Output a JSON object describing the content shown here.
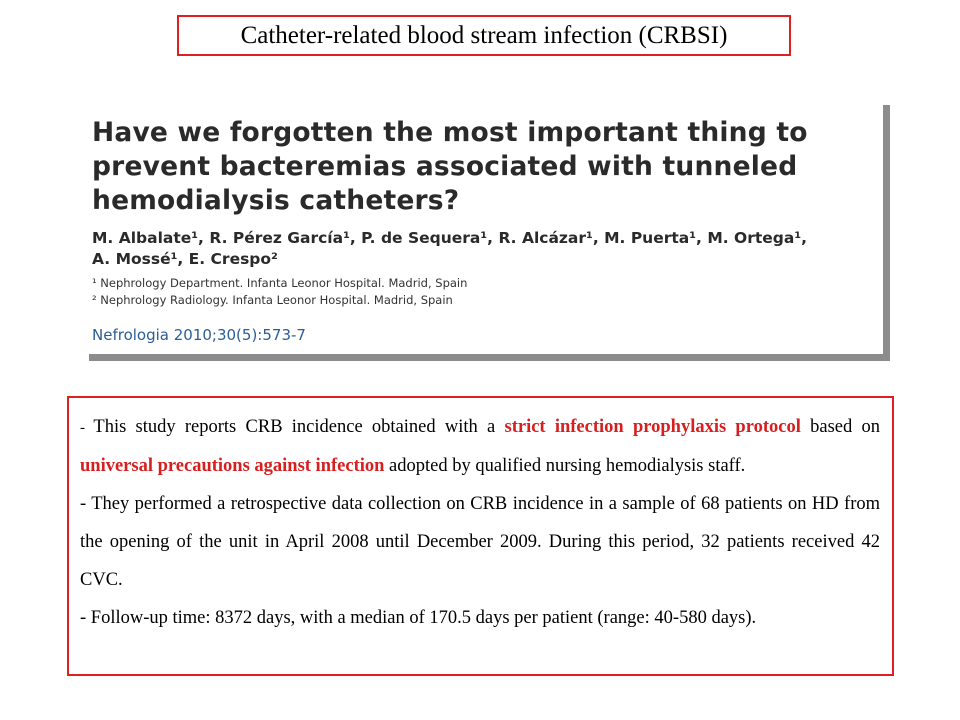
{
  "slide": {
    "title": "Catheter-related blood stream infection (CRBSI)"
  },
  "paper": {
    "title": "Have we forgotten the most important thing to prevent bacteremias associated with tunneled hemodialysis catheters?",
    "authors_line1": "M. Albalate¹, R. Pérez García¹, P. de Sequera¹, R. Alcázar¹, M. Puerta¹, M. Ortega¹,",
    "authors_line2": "A. Mossé¹, E. Crespo²",
    "affiliation_1": "¹ Nephrology Department. Infanta Leonor Hospital. Madrid, Spain",
    "affiliation_2": "² Nephrology Radiology. Infanta Leonor Hospital. Madrid, Spain",
    "citation": "Nefrologia 2010;30(5):573-7"
  },
  "summary": {
    "colors": {
      "highlight": "#d62020",
      "border": "#e02020"
    },
    "p1_dash": "- ",
    "p1_a": "This study reports CRB incidence obtained with a ",
    "p1_hl1": "strict infection prophylaxis protocol",
    "p1_b": " based on ",
    "p1_hl2": "universal precautions against infection",
    "p1_c": " adopted by qualified nursing hemodialysis staff.",
    "p2": "- They performed a retrospective data collection on CRB incidence in a sample of 68 patients on HD from the opening of the unit in April 2008 until December 2009. During this period, 32 patients received 42 CVC.",
    "p3": "- Follow-up time: 8372 days, with a median of 170.5 days per patient (range: 40-580 days)."
  }
}
